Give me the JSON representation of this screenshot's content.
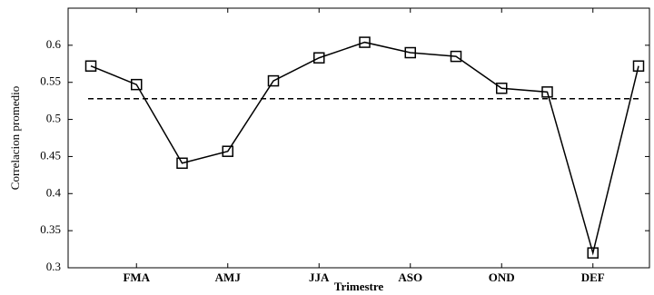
{
  "chart_data": {
    "type": "line",
    "x_label": "Trimestre",
    "y_label": "Correlacion promedio",
    "categories": [
      null,
      "FMA",
      null,
      "AMJ",
      null,
      "JJA",
      null,
      "ASO",
      null,
      "OND",
      null,
      "DEF",
      null
    ],
    "series": [
      {
        "color": "#000000",
        "values": [
          0.572,
          0.547,
          0.441,
          0.457,
          0.552,
          0.583,
          0.604,
          0.59,
          0.585,
          0.542,
          0.537,
          0.32,
          0.572
        ]
      }
    ],
    "reference": 0.528,
    "ylim": [
      0.3,
      0.65
    ],
    "yticks": [
      0.3,
      0.35,
      0.4,
      0.45,
      0.5,
      0.55,
      0.6
    ]
  }
}
